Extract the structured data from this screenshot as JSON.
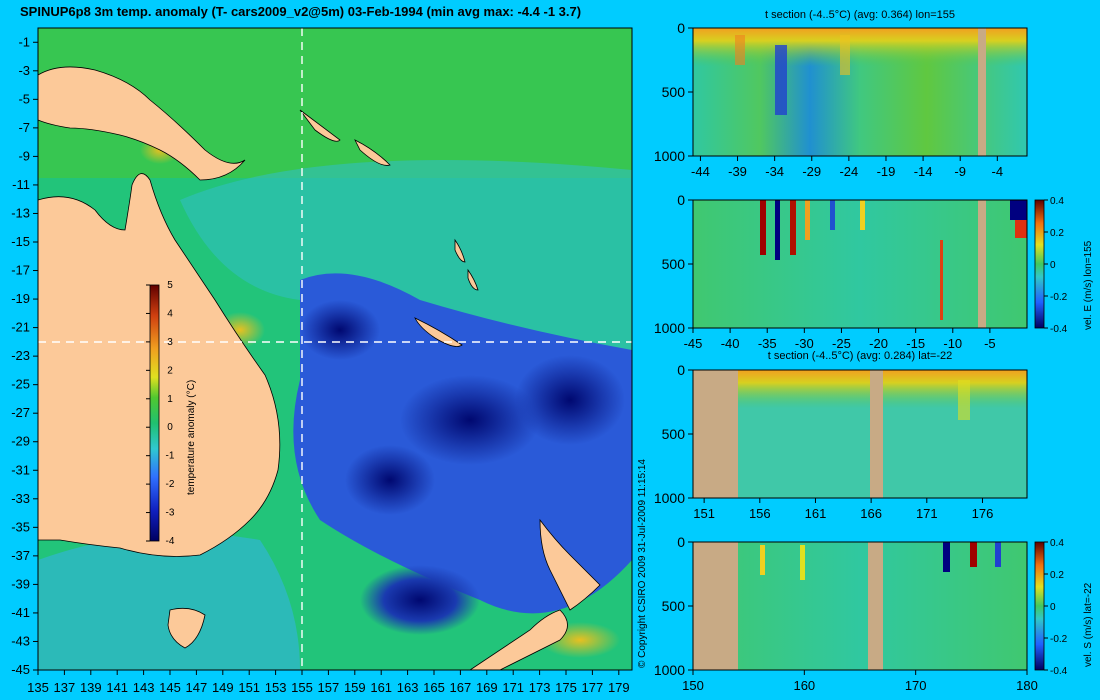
{
  "background_color": "#00ccff",
  "land_color": "#fcc999",
  "section_land_color": "#c8aa85",
  "main_map": {
    "title": "SPINUP6p8 3m temp. anomaly (T- cars2009_v2@5m) 03-Feb-1994 (min avg max: -4.4 -1 3.7)",
    "x_ticks": [
      "135",
      "137",
      "139",
      "141",
      "143",
      "145",
      "147",
      "149",
      "151",
      "153",
      "155",
      "157",
      "159",
      "161",
      "163",
      "165",
      "167",
      "169",
      "171",
      "173",
      "175",
      "177",
      "179"
    ],
    "y_ticks": [
      "-1",
      "-3",
      "-5",
      "-7",
      "-9",
      "-11",
      "-13",
      "-15",
      "-17",
      "-19",
      "-21",
      "-23",
      "-25",
      "-27",
      "-29",
      "-31",
      "-33",
      "-35",
      "-37",
      "-39",
      "-41",
      "-43",
      "-45"
    ],
    "section_lon": 155,
    "section_lat": -22,
    "colorbar": {
      "label": "temperature anomaly (°C)",
      "ticks": [
        "5",
        "4",
        "3",
        "2",
        "1",
        "0",
        "-1",
        "-2",
        "-3",
        "-4"
      ]
    },
    "copyright": "© Copyright CSIRO 2009    31-Jul-2009 11:15:14"
  },
  "panels": [
    {
      "id": "t-section-lon",
      "title": "t section (-4..5°C) (avg: 0.364) lon=155",
      "y_ticks": [
        "0",
        "500",
        "1000"
      ],
      "x_ticks": [
        "-44",
        "-39",
        "-34",
        "-29",
        "-24",
        "-19",
        "-14",
        "-9",
        "-4"
      ],
      "colorbar": null
    },
    {
      "id": "vel-e-lon",
      "title": "",
      "y_ticks": [
        "0",
        "500",
        "1000"
      ],
      "x_ticks": [
        "-45",
        "-40",
        "-35",
        "-30",
        "-25",
        "-20",
        "-15",
        "-10",
        "-5"
      ],
      "colorbar": {
        "label": "vel. E (m/s) lon=155",
        "ticks": [
          "0.4",
          "0.2",
          "0",
          "-0.2",
          "-0.4"
        ]
      }
    },
    {
      "id": "t-section-lat",
      "title": "t section (-4..5°C) (avg: 0.284) lat=-22",
      "y_ticks": [
        "0",
        "500",
        "1000"
      ],
      "x_ticks": [
        "151",
        "156",
        "161",
        "166",
        "171",
        "176"
      ],
      "colorbar": null
    },
    {
      "id": "vel-s-lat",
      "title": "",
      "y_ticks": [
        "0",
        "500",
        "1000"
      ],
      "x_ticks": [
        "150",
        "160",
        "170",
        "180"
      ],
      "colorbar": {
        "label": "vel. S (m/s) lat=-22",
        "ticks": [
          "0.4",
          "0.2",
          "0",
          "-0.2",
          "-0.4"
        ]
      }
    }
  ],
  "chart_data": [
    {
      "type": "heatmap",
      "title": "SPINUP6p8 3m temp. anomaly (T- cars2009_v2@5m) 03-Feb-1994 (min avg max: -4.4 -1 3.7)",
      "xlabel": "",
      "ylabel": "",
      "xlim": [
        135,
        180
      ],
      "ylim": [
        -45,
        0
      ],
      "value_min": -4.4,
      "value_avg": -1,
      "value_max": 3.7,
      "colorbar_range": [
        -4,
        5
      ],
      "colorbar_label": "temperature anomaly (°C)"
    },
    {
      "type": "heatmap",
      "title": "t section (-4..5°C) (avg: 0.364) lon=155",
      "xlim": [
        -45,
        0
      ],
      "ylim": [
        1000,
        0
      ],
      "value_range": [
        -4,
        5
      ],
      "avg": 0.364
    },
    {
      "type": "heatmap",
      "title": "",
      "xlim": [
        -45,
        0
      ],
      "ylim": [
        1000,
        0
      ],
      "colorbar_range": [
        -0.4,
        0.4
      ],
      "colorbar_label": "vel. E (m/s) lon=155"
    },
    {
      "type": "heatmap",
      "title": "t section (-4..5°C) (avg: 0.284) lat=-22",
      "xlim": [
        150,
        180
      ],
      "ylim": [
        1000,
        0
      ],
      "value_range": [
        -4,
        5
      ],
      "avg": 0.284
    },
    {
      "type": "heatmap",
      "title": "",
      "xlim": [
        150,
        180
      ],
      "ylim": [
        1000,
        0
      ],
      "colorbar_range": [
        -0.4,
        0.4
      ],
      "colorbar_label": "vel. S (m/s) lat=-22"
    }
  ]
}
